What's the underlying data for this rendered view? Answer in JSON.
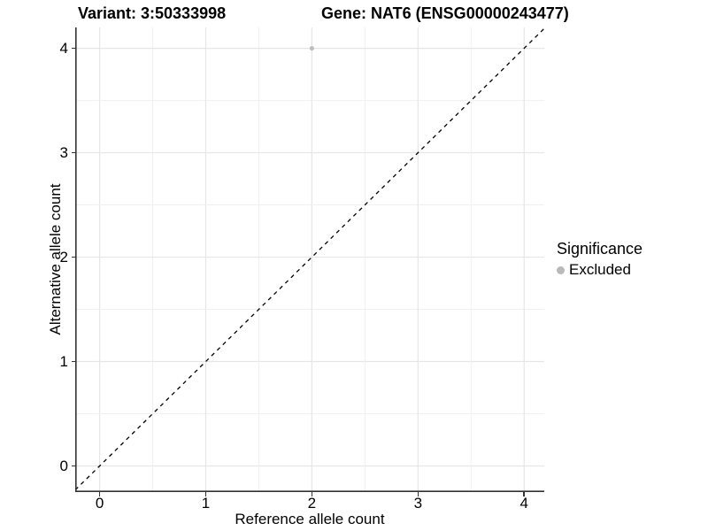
{
  "titles": {
    "variant": "Variant: 3:50333998",
    "gene": "Gene: NAT6 (ENSG00000243477)"
  },
  "axes": {
    "x_label": "Reference allele count",
    "y_label": "Alternative allele count",
    "x_tick_labels": [
      "0",
      "1",
      "2",
      "3",
      "4"
    ],
    "y_tick_labels": [
      "0",
      "1",
      "2",
      "3",
      "4"
    ]
  },
  "legend": {
    "title": "Significance",
    "items": [
      {
        "label": "Excluded",
        "color": "#bdbdbd"
      }
    ]
  },
  "colors": {
    "background": "#ffffff",
    "point": "#bebebe",
    "legend_dot": "#b9b9b9",
    "grid_major": "#e6e6e6",
    "grid_minor": "#f0f0f0",
    "axis_line": "#333333",
    "dashed_line": "#000000",
    "text": "#000000"
  },
  "chart_data": {
    "type": "scatter",
    "title_left": "Variant: 3:50333998",
    "title_right": "Gene: NAT6 (ENSG00000243477)",
    "xlabel": "Reference allele count",
    "ylabel": "Alternative allele count",
    "xlim": [
      -0.23,
      4.19
    ],
    "ylim": [
      -0.25,
      4.2
    ],
    "x_ticks": [
      0,
      1,
      2,
      3,
      4
    ],
    "y_ticks": [
      0,
      1,
      2,
      3,
      4
    ],
    "grid": true,
    "minor_grid_step": 0.5,
    "major_grid_step": 1,
    "points": [
      {
        "x": 2,
        "y": 4,
        "series": "Excluded"
      }
    ],
    "reference_line": {
      "kind": "identity y=x",
      "style": "dashed",
      "color": "#000000"
    },
    "legend_position": "right",
    "legend_title": "Significance",
    "legend_entries": [
      "Excluded"
    ]
  }
}
